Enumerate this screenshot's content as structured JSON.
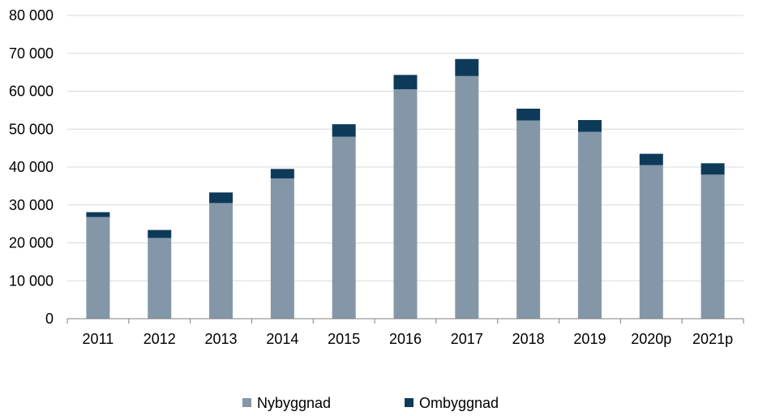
{
  "chart_data": {
    "type": "bar",
    "stacked": true,
    "categories": [
      "2011",
      "2012",
      "2013",
      "2014",
      "2015",
      "2016",
      "2017",
      "2018",
      "2019",
      "2020p",
      "2021p"
    ],
    "series": [
      {
        "name": "Nybyggnad",
        "color": "#8497a8",
        "values": [
          26800,
          21300,
          30500,
          37000,
          48000,
          60500,
          64000,
          52300,
          49300,
          40500,
          38000
        ]
      },
      {
        "name": "Ombyggnad",
        "color": "#0e3a5a",
        "values": [
          1300,
          2100,
          2800,
          2500,
          3300,
          3800,
          4500,
          3100,
          3100,
          3000,
          3000
        ]
      }
    ],
    "ylim": [
      0,
      80000
    ],
    "y_ticks": [
      0,
      10000,
      20000,
      30000,
      40000,
      50000,
      60000,
      70000,
      80000
    ],
    "y_tick_labels": [
      "0",
      "10 000",
      "20 000",
      "30 000",
      "40 000",
      "50 000",
      "60 000",
      "70 000",
      "80 000"
    ],
    "grid": true,
    "legend_position": "bottom",
    "title": "",
    "xlabel": "",
    "ylabel": ""
  }
}
